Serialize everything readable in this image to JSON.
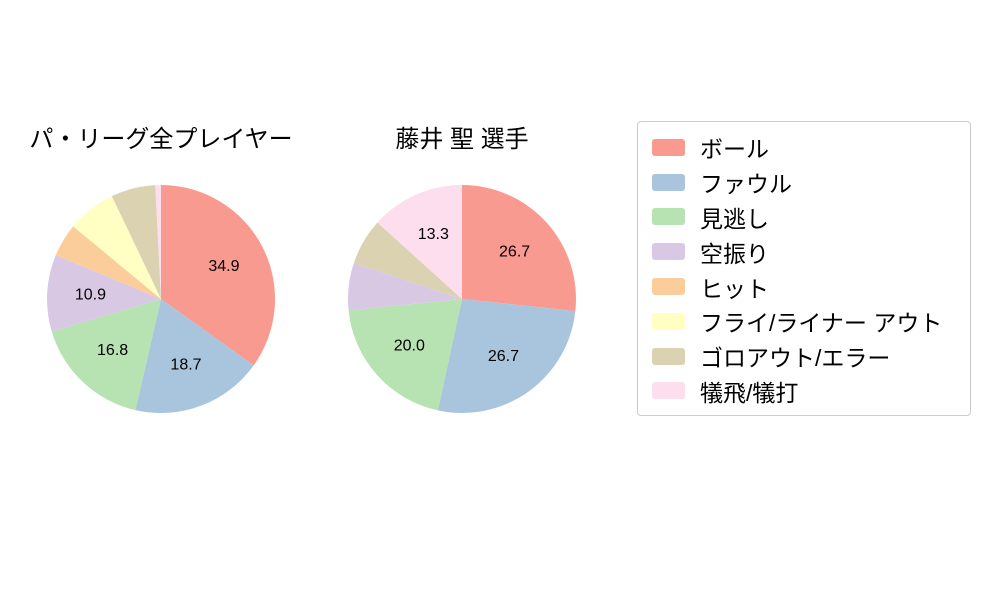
{
  "page": {
    "background": "#ffffff"
  },
  "legend": {
    "items": [
      {
        "label": "ボール",
        "color": "#f99a90"
      },
      {
        "label": "ファウル",
        "color": "#a9c5dd"
      },
      {
        "label": "見逃し",
        "color": "#b7e2b1"
      },
      {
        "label": "空振り",
        "color": "#d8c8e4"
      },
      {
        "label": "ヒット",
        "color": "#fbcd9b"
      },
      {
        "label": "フライ/ライナー アウト",
        "color": "#ffffc3"
      },
      {
        "label": "ゴロアウト/エラー",
        "color": "#dbd2b2"
      },
      {
        "label": "犠飛/犠打",
        "color": "#fcdeee"
      }
    ]
  },
  "chart_data": [
    {
      "type": "pie",
      "title": "パ・リーグ全プレイヤー",
      "unit": "percent",
      "start_angle_deg": 90,
      "direction": "clockwise",
      "label_radius_ratio": 0.62,
      "slices": [
        {
          "name": "ボール",
          "value": 34.9,
          "label": "34.9"
        },
        {
          "name": "ファウル",
          "value": 18.7,
          "label": "18.7"
        },
        {
          "name": "見逃し",
          "value": 16.8,
          "label": "16.8"
        },
        {
          "name": "空振り",
          "value": 10.9,
          "label": "10.9"
        },
        {
          "name": "ヒット",
          "value": 4.7,
          "label": ""
        },
        {
          "name": "フライ/ライナー アウト",
          "value": 6.9,
          "label": ""
        },
        {
          "name": "ゴロアウト/エラー",
          "value": 6.3,
          "label": ""
        },
        {
          "name": "犠飛/犠打",
          "value": 0.8,
          "label": ""
        }
      ]
    },
    {
      "type": "pie",
      "title": "藤井 聖 選手",
      "unit": "percent",
      "start_angle_deg": 90,
      "direction": "clockwise",
      "label_radius_ratio": 0.62,
      "slices": [
        {
          "name": "ボール",
          "value": 26.7,
          "label": "26.7"
        },
        {
          "name": "ファウル",
          "value": 26.7,
          "label": "26.7"
        },
        {
          "name": "見逃し",
          "value": 20.0,
          "label": "20.0"
        },
        {
          "name": "空振り",
          "value": 6.7,
          "label": ""
        },
        {
          "name": "ヒット",
          "value": 0,
          "label": ""
        },
        {
          "name": "フライ/ライナー アウト",
          "value": 0,
          "label": ""
        },
        {
          "name": "ゴロアウト/エラー",
          "value": 6.6,
          "label": ""
        },
        {
          "name": "犠飛/犠打",
          "value": 13.3,
          "label": "13.3"
        }
      ]
    }
  ]
}
